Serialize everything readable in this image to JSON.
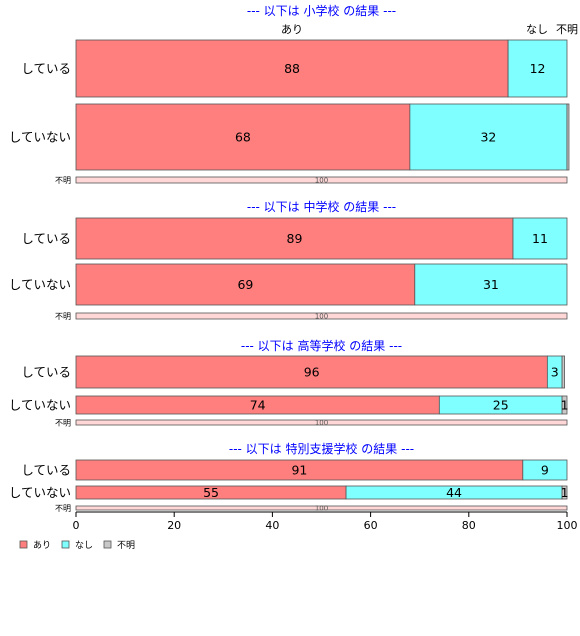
{
  "chart_data": {
    "type": "bar",
    "orientation": "horizontal",
    "stacked": true,
    "legend": [
      "あり",
      "なし",
      "不明"
    ],
    "legend_placement": "bottom-left",
    "column_headers": [
      "あり",
      "なし",
      "不明"
    ],
    "colors": {
      "あり": "#ff7f7f",
      "なし": "#7fffff",
      "不明": "#c8c8c8",
      "unknown_row": "#ffd7d7"
    },
    "xlim": [
      0,
      100
    ],
    "xticks": [
      "0",
      "20",
      "40",
      "60",
      "80",
      "100"
    ],
    "panels": [
      {
        "title": "--- 以下は 小学校 の結果 ---",
        "rows": [
          {
            "label": "している",
            "values": [
              88,
              12,
              0
            ],
            "labels": [
              "88",
              "12",
              ""
            ]
          },
          {
            "label": "していない",
            "values": [
              68,
              32,
              0.4
            ],
            "labels": [
              "68",
              "32",
              ""
            ]
          },
          {
            "label": "不明",
            "values": [
              100,
              0,
              0
            ],
            "labels": [
              "100",
              "",
              ""
            ],
            "unknown": true
          }
        ]
      },
      {
        "title": "--- 以下は 中学校 の結果 ---",
        "rows": [
          {
            "label": "している",
            "values": [
              89,
              11,
              0
            ],
            "labels": [
              "89",
              "11",
              ""
            ]
          },
          {
            "label": "していない",
            "values": [
              69,
              31,
              0
            ],
            "labels": [
              "69",
              "31",
              ""
            ]
          },
          {
            "label": "不明",
            "values": [
              100,
              0,
              0
            ],
            "labels": [
              "100",
              "",
              ""
            ],
            "unknown": true
          }
        ]
      },
      {
        "title": "--- 以下は 高等学校 の結果 ---",
        "rows": [
          {
            "label": "している",
            "values": [
              96,
              3,
              0.5
            ],
            "labels": [
              "96",
              "3",
              ""
            ]
          },
          {
            "label": "していない",
            "values": [
              74,
              25,
              1
            ],
            "labels": [
              "74",
              "25",
              "1"
            ]
          },
          {
            "label": "不明",
            "values": [
              100,
              0,
              0
            ],
            "labels": [
              "100",
              "",
              ""
            ],
            "unknown": true
          }
        ]
      },
      {
        "title": "--- 以下は 特別支援学校 の結果 ---",
        "rows": [
          {
            "label": "している",
            "values": [
              91,
              9,
              0
            ],
            "labels": [
              "91",
              "9",
              ""
            ]
          },
          {
            "label": "していない",
            "values": [
              55,
              44,
              1
            ],
            "labels": [
              "55",
              "44",
              "1"
            ]
          },
          {
            "label": "不明",
            "values": [
              100,
              0,
              0
            ],
            "labels": [
              "100",
              "",
              ""
            ],
            "unknown": true
          }
        ]
      }
    ]
  }
}
